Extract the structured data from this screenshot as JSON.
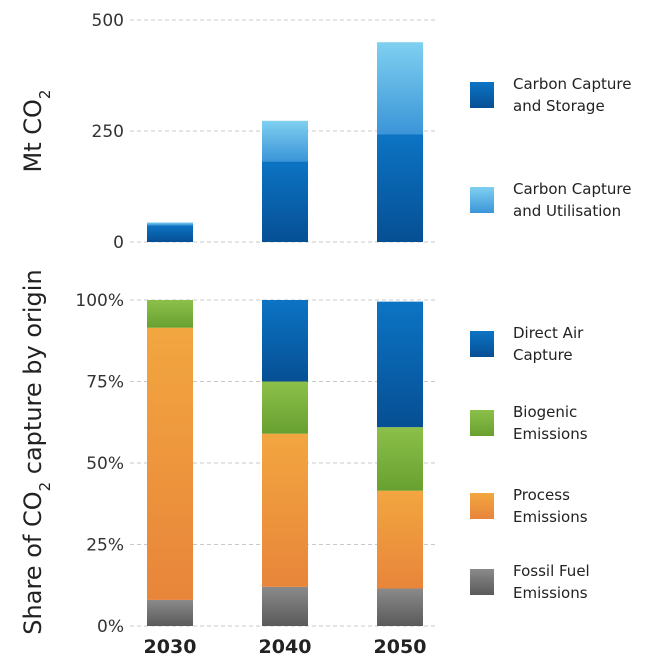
{
  "chart_data": [
    {
      "type": "bar",
      "stacked": true,
      "categories": [
        "2030",
        "2040",
        "2050"
      ],
      "ylabel_main": "Mt CO",
      "ylabel_sub": "2",
      "ylim": [
        0,
        500
      ],
      "yticks": [
        0,
        250,
        500
      ],
      "ytick_labels": [
        "0",
        "250",
        "500"
      ],
      "grid": true,
      "legend_position": "right",
      "series": [
        {
          "name_lines": [
            "Carbon Capture",
            "and Storage"
          ],
          "values": [
            38,
            182,
            243
          ],
          "color_top": "#0c74c4",
          "color_bottom": "#064f94"
        },
        {
          "name_lines": [
            "Carbon Capture",
            "and Utilisation"
          ],
          "values": [
            6,
            91,
            207
          ],
          "color_top": "#7fd0f0",
          "color_bottom": "#3b95d8"
        }
      ]
    },
    {
      "type": "bar",
      "stacked": true,
      "percent": true,
      "categories": [
        "2030",
        "2040",
        "2050"
      ],
      "ylabel_pre": "Share of CO",
      "ylabel_sub": "2",
      "ylabel_post": " capture by origin",
      "ylim": [
        0,
        100
      ],
      "yticks": [
        0,
        25,
        50,
        75,
        100
      ],
      "ytick_labels": [
        "0%",
        "25%",
        "50%",
        "75%",
        "100%"
      ],
      "grid": true,
      "legend_position": "right",
      "series": [
        {
          "name_lines": [
            "Fossil Fuel",
            "Emissions"
          ],
          "values": [
            8,
            12,
            11.5
          ],
          "color_top": "#8a8a8a",
          "color_bottom": "#5a5a5a"
        },
        {
          "name_lines": [
            "Process",
            "Emissions"
          ],
          "values": [
            83.5,
            47,
            30
          ],
          "color_top": "#f2a640",
          "color_bottom": "#e8853a"
        },
        {
          "name_lines": [
            "Biogenic",
            "Emissions"
          ],
          "values": [
            8.5,
            16,
            19.5
          ],
          "color_top": "#8cc04a",
          "color_bottom": "#68a030"
        },
        {
          "name_lines": [
            "Direct Air",
            "Capture"
          ],
          "values": [
            0,
            25,
            38.5
          ],
          "color_top": "#0c74c4",
          "color_bottom": "#064f94"
        }
      ]
    }
  ]
}
